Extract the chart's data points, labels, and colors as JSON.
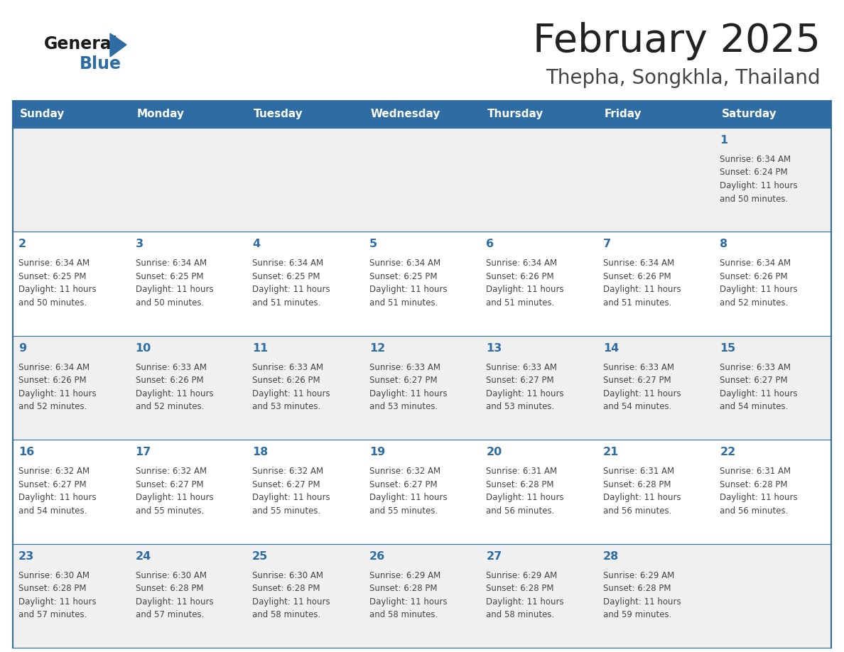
{
  "title": "February 2025",
  "subtitle": "Thepha, Songkhla, Thailand",
  "days_of_week": [
    "Sunday",
    "Monday",
    "Tuesday",
    "Wednesday",
    "Thursday",
    "Friday",
    "Saturday"
  ],
  "header_bg": "#2E6DA4",
  "header_text_color": "#FFFFFF",
  "cell_border_color": "#2E6DA4",
  "day_number_color": "#2E6DA4",
  "info_text_color": "#444444",
  "bg_color": "#FFFFFF",
  "row_bg_odd": "#F0F0F0",
  "row_bg_even": "#FFFFFF",
  "title_color": "#222222",
  "subtitle_color": "#444444",
  "logo_general_color": "#1a1a1a",
  "logo_blue_color": "#2E6DA4",
  "calendar_data": [
    [
      null,
      null,
      null,
      null,
      null,
      null,
      {
        "day": 1,
        "sunrise": "6:34 AM",
        "sunset": "6:24 PM",
        "daylight_hours": 11,
        "daylight_minutes": 50
      }
    ],
    [
      {
        "day": 2,
        "sunrise": "6:34 AM",
        "sunset": "6:25 PM",
        "daylight_hours": 11,
        "daylight_minutes": 50
      },
      {
        "day": 3,
        "sunrise": "6:34 AM",
        "sunset": "6:25 PM",
        "daylight_hours": 11,
        "daylight_minutes": 50
      },
      {
        "day": 4,
        "sunrise": "6:34 AM",
        "sunset": "6:25 PM",
        "daylight_hours": 11,
        "daylight_minutes": 51
      },
      {
        "day": 5,
        "sunrise": "6:34 AM",
        "sunset": "6:25 PM",
        "daylight_hours": 11,
        "daylight_minutes": 51
      },
      {
        "day": 6,
        "sunrise": "6:34 AM",
        "sunset": "6:26 PM",
        "daylight_hours": 11,
        "daylight_minutes": 51
      },
      {
        "day": 7,
        "sunrise": "6:34 AM",
        "sunset": "6:26 PM",
        "daylight_hours": 11,
        "daylight_minutes": 51
      },
      {
        "day": 8,
        "sunrise": "6:34 AM",
        "sunset": "6:26 PM",
        "daylight_hours": 11,
        "daylight_minutes": 52
      }
    ],
    [
      {
        "day": 9,
        "sunrise": "6:34 AM",
        "sunset": "6:26 PM",
        "daylight_hours": 11,
        "daylight_minutes": 52
      },
      {
        "day": 10,
        "sunrise": "6:33 AM",
        "sunset": "6:26 PM",
        "daylight_hours": 11,
        "daylight_minutes": 52
      },
      {
        "day": 11,
        "sunrise": "6:33 AM",
        "sunset": "6:26 PM",
        "daylight_hours": 11,
        "daylight_minutes": 53
      },
      {
        "day": 12,
        "sunrise": "6:33 AM",
        "sunset": "6:27 PM",
        "daylight_hours": 11,
        "daylight_minutes": 53
      },
      {
        "day": 13,
        "sunrise": "6:33 AM",
        "sunset": "6:27 PM",
        "daylight_hours": 11,
        "daylight_minutes": 53
      },
      {
        "day": 14,
        "sunrise": "6:33 AM",
        "sunset": "6:27 PM",
        "daylight_hours": 11,
        "daylight_minutes": 54
      },
      {
        "day": 15,
        "sunrise": "6:33 AM",
        "sunset": "6:27 PM",
        "daylight_hours": 11,
        "daylight_minutes": 54
      }
    ],
    [
      {
        "day": 16,
        "sunrise": "6:32 AM",
        "sunset": "6:27 PM",
        "daylight_hours": 11,
        "daylight_minutes": 54
      },
      {
        "day": 17,
        "sunrise": "6:32 AM",
        "sunset": "6:27 PM",
        "daylight_hours": 11,
        "daylight_minutes": 55
      },
      {
        "day": 18,
        "sunrise": "6:32 AM",
        "sunset": "6:27 PM",
        "daylight_hours": 11,
        "daylight_minutes": 55
      },
      {
        "day": 19,
        "sunrise": "6:32 AM",
        "sunset": "6:27 PM",
        "daylight_hours": 11,
        "daylight_minutes": 55
      },
      {
        "day": 20,
        "sunrise": "6:31 AM",
        "sunset": "6:28 PM",
        "daylight_hours": 11,
        "daylight_minutes": 56
      },
      {
        "day": 21,
        "sunrise": "6:31 AM",
        "sunset": "6:28 PM",
        "daylight_hours": 11,
        "daylight_minutes": 56
      },
      {
        "day": 22,
        "sunrise": "6:31 AM",
        "sunset": "6:28 PM",
        "daylight_hours": 11,
        "daylight_minutes": 56
      }
    ],
    [
      {
        "day": 23,
        "sunrise": "6:30 AM",
        "sunset": "6:28 PM",
        "daylight_hours": 11,
        "daylight_minutes": 57
      },
      {
        "day": 24,
        "sunrise": "6:30 AM",
        "sunset": "6:28 PM",
        "daylight_hours": 11,
        "daylight_minutes": 57
      },
      {
        "day": 25,
        "sunrise": "6:30 AM",
        "sunset": "6:28 PM",
        "daylight_hours": 11,
        "daylight_minutes": 58
      },
      {
        "day": 26,
        "sunrise": "6:29 AM",
        "sunset": "6:28 PM",
        "daylight_hours": 11,
        "daylight_minutes": 58
      },
      {
        "day": 27,
        "sunrise": "6:29 AM",
        "sunset": "6:28 PM",
        "daylight_hours": 11,
        "daylight_minutes": 58
      },
      {
        "day": 28,
        "sunrise": "6:29 AM",
        "sunset": "6:28 PM",
        "daylight_hours": 11,
        "daylight_minutes": 59
      },
      null
    ]
  ]
}
